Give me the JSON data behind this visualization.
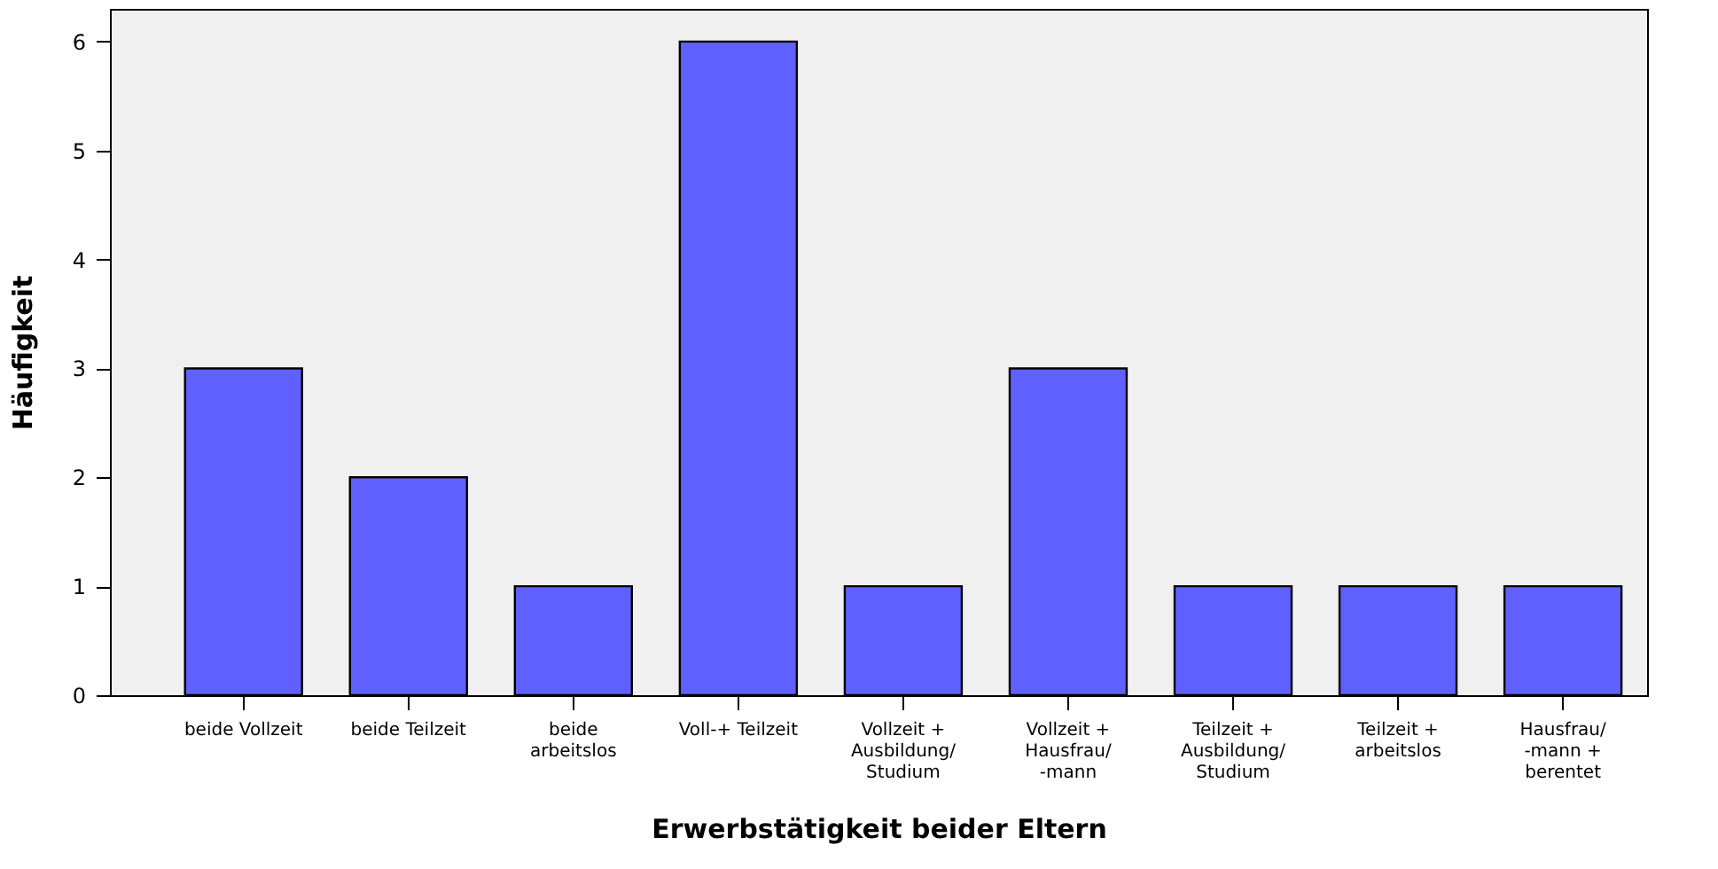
{
  "chart_data": {
    "type": "bar",
    "xlabel": "Erwerbstätigkeit beider Eltern",
    "ylabel": "Häufigkeit",
    "categories": [
      "beide Vollzeit",
      "beide Teilzeit",
      "beide\narbeitslos",
      "Voll-+ Teilzeit",
      "Vollzeit +\nAusbildung/\nStudium",
      "Vollzeit +\nHausfrau/\n-mann",
      "Teilzeit +\nAusbildung/\nStudium",
      "Teilzeit +\narbeitslos",
      "Hausfrau/\n-mann +\nberentet"
    ],
    "values": [
      3,
      2,
      1,
      6,
      1,
      3,
      1,
      1,
      1
    ],
    "color": "#6060ff",
    "ylim": [
      0,
      6.3
    ],
    "yticks": [
      0,
      1,
      2,
      3,
      4,
      5,
      6
    ],
    "grid": false
  }
}
